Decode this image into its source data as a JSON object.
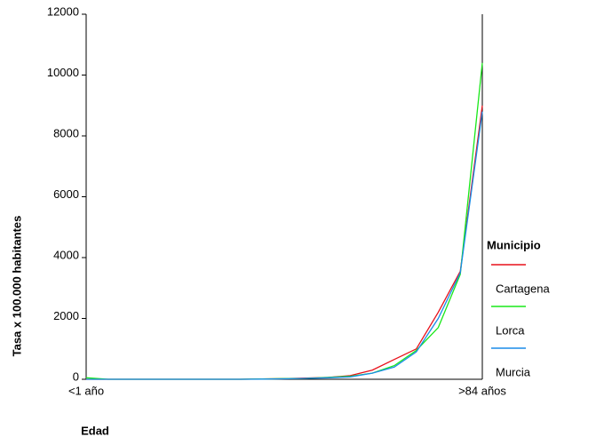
{
  "chart_data": {
    "type": "line",
    "x_label": "Edad",
    "y_label": "Tasa x 100.000 habitantes",
    "categories": [
      "<1 año",
      null,
      null,
      null,
      null,
      null,
      null,
      null,
      null,
      null,
      null,
      null,
      null,
      null,
      null,
      null,
      null,
      null,
      ">84 años"
    ],
    "series": [
      {
        "name": "Cartagena",
        "color": "#e8101a",
        "values": [
          0,
          0,
          0,
          0,
          0,
          0,
          0,
          0,
          10,
          20,
          40,
          60,
          120,
          300,
          650,
          1000,
          2200,
          3550,
          9000
        ]
      },
      {
        "name": "Lorca",
        "color": "#18e818",
        "values": [
          50,
          0,
          0,
          0,
          0,
          0,
          0,
          0,
          10,
          20,
          30,
          60,
          100,
          200,
          450,
          950,
          1700,
          3450,
          10400
        ]
      },
      {
        "name": "Murcia",
        "color": "#1a8ce8",
        "values": [
          0,
          0,
          0,
          0,
          0,
          0,
          0,
          0,
          5,
          15,
          30,
          50,
          80,
          200,
          400,
          900,
          2000,
          3500,
          8800
        ]
      }
    ],
    "ylim": [
      0,
      12000
    ],
    "yticks": [
      0,
      2000,
      4000,
      6000,
      8000,
      10000,
      12000
    ],
    "legend_title": "Municipio",
    "legend_position": "right"
  }
}
